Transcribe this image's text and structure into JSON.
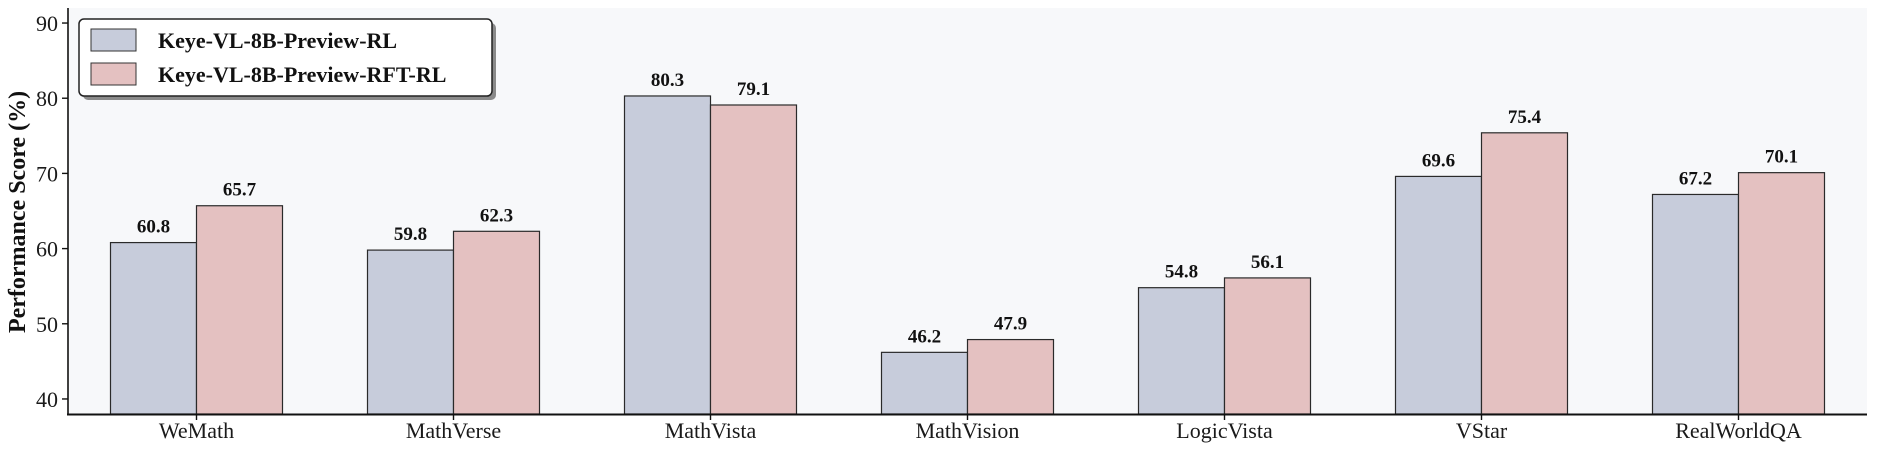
{
  "chart_data": {
    "type": "bar",
    "title": "",
    "xlabel": "",
    "ylabel": "Performance Score (%)",
    "ylim": [
      38,
      92
    ],
    "yticks": [
      40,
      50,
      60,
      70,
      80,
      90
    ],
    "grid": false,
    "legend_position": "top-left",
    "categories": [
      "WeMath",
      "MathVerse",
      "MathVista",
      "MathVision",
      "LogicVista",
      "VStar",
      "RealWorldQA"
    ],
    "series": [
      {
        "name": "Keye-VL-8B-Preview-RL",
        "color": "#c7ccdb",
        "values": [
          60.8,
          59.8,
          80.3,
          46.2,
          54.8,
          69.6,
          67.2
        ],
        "labels": [
          "60.8",
          "59.8",
          "80.3",
          "46.2",
          "54.8",
          "69.6",
          "67.2"
        ]
      },
      {
        "name": "Keye-VL-8B-Preview-RFT-RL",
        "color": "#e4c1c1",
        "values": [
          65.7,
          62.3,
          79.1,
          47.9,
          56.1,
          75.4,
          70.1
        ],
        "labels": [
          "65.7",
          "62.3",
          "79.1",
          "47.9",
          "56.1",
          "75.4",
          "70.1"
        ]
      }
    ]
  }
}
